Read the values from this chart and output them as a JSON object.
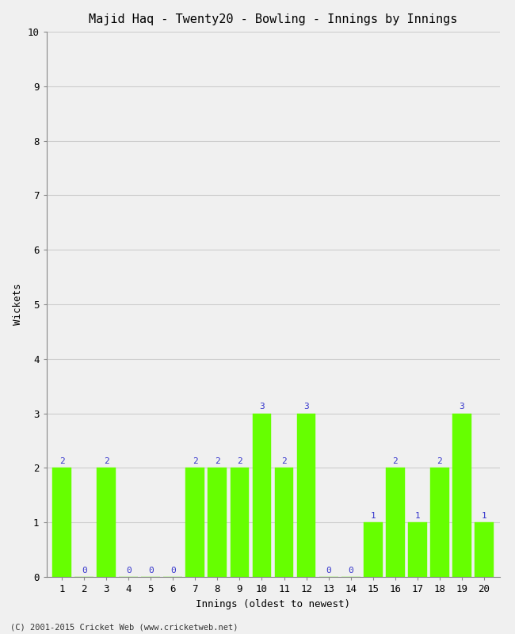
{
  "title": "Majid Haq - Twenty20 - Bowling - Innings by Innings",
  "xlabel": "Innings (oldest to newest)",
  "ylabel": "Wickets",
  "innings": [
    1,
    2,
    3,
    4,
    5,
    6,
    7,
    8,
    9,
    10,
    11,
    12,
    13,
    14,
    15,
    16,
    17,
    18,
    19,
    20
  ],
  "wickets": [
    2,
    0,
    2,
    0,
    0,
    0,
    2,
    2,
    2,
    3,
    2,
    3,
    0,
    0,
    1,
    2,
    1,
    2,
    3,
    1
  ],
  "bar_color": "#66ff00",
  "bar_edge_color": "#66ff00",
  "label_color": "#3333cc",
  "background_color": "#f0f0f0",
  "plot_bg_color": "#f0f0f0",
  "ylim": [
    0,
    10
  ],
  "yticks": [
    0,
    1,
    2,
    3,
    4,
    5,
    6,
    7,
    8,
    9,
    10
  ],
  "title_fontsize": 11,
  "axis_label_fontsize": 9,
  "tick_fontsize": 9,
  "label_fontsize": 8,
  "footer": "(C) 2001-2015 Cricket Web (www.cricketweb.net)"
}
